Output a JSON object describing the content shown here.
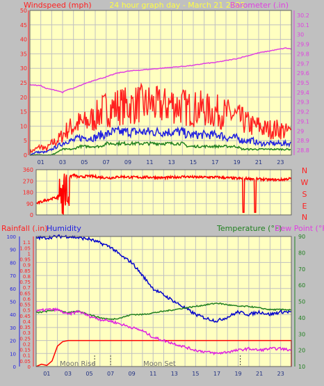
{
  "header": {
    "title": "24 hour graph day - March 21 2025",
    "left_label": "Windspeed (mph)",
    "right_label": "Barometer (.in)"
  },
  "mid_panel": {
    "direction_letters": [
      "N",
      "W",
      "S",
      "E",
      "N"
    ]
  },
  "bottom_header": {
    "rainfall_label": "Rainfall (.in)",
    "humidity_label": "Humidity",
    "temperature_label": "Temperature (°F)",
    "dewpoint_label": "Dew Point (°F)"
  },
  "moon": {
    "rise_label": "Moon Rise",
    "set_label": "Moon Set"
  },
  "colors": {
    "background": "#c0c0c0",
    "plot_bg": "#ffffc0",
    "gust": "#ff2020",
    "wind_avg": "#2020e0",
    "wind_min": "#208020",
    "barometer": "#e040e0",
    "direction": "#ff0000",
    "rain": "#ff0000",
    "humidity": "#0000cc",
    "temperature": "#208020",
    "dewpoint": "#e020e0",
    "grid": "#c0c0c0"
  },
  "chart_data": [
    {
      "type": "line",
      "title": "24 hour graph day - March 21 2025",
      "ylabel": "Windspeed (mph)",
      "ylim": [
        0,
        50
      ],
      "yticks": [
        0,
        5,
        10,
        15,
        20,
        25,
        30,
        35,
        40,
        45,
        50
      ],
      "y2label": "Barometer (.in)",
      "y2lim": [
        28.75,
        30.25
      ],
      "y2ticks": [
        "28.8",
        "28.9",
        "29",
        "29.1",
        "29.2",
        "29.3",
        "29.4",
        "29.5",
        "29.6",
        "29.7",
        "29.8",
        "29.9",
        "30",
        "30.1",
        "30.2"
      ],
      "x_ticks": [
        "01",
        "03",
        "05",
        "07",
        "09",
        "11",
        "13",
        "15",
        "17",
        "19",
        "21",
        "23"
      ],
      "xlim": [
        0,
        24
      ],
      "grid": true,
      "series": [
        {
          "key": "gust",
          "axis": "left",
          "x": [
            0,
            0.5,
            1,
            1.5,
            2,
            2.5,
            3,
            3.5,
            4,
            4.5,
            5,
            5.5,
            6,
            6.5,
            7,
            7.5,
            8,
            8.5,
            9,
            9.5,
            10,
            10.5,
            11,
            11.5,
            12,
            12.5,
            13,
            13.5,
            14,
            14.5,
            15,
            15.5,
            16,
            16.5,
            17,
            17.5,
            18,
            18.5,
            19,
            19.5,
            20,
            20.5,
            21,
            21.5,
            22,
            22.5,
            23,
            23.5,
            24
          ],
          "values": [
            1,
            2,
            3,
            2,
            4,
            5,
            7,
            9,
            10,
            11,
            11,
            12,
            13,
            15,
            16,
            16,
            17,
            17,
            17,
            17,
            18,
            17,
            18,
            17,
            17,
            17,
            18,
            17,
            17,
            16,
            16,
            16,
            16,
            15,
            15,
            15,
            14,
            14,
            13,
            12,
            11,
            10,
            10,
            9,
            9,
            9,
            9,
            8,
            8
          ]
        },
        {
          "key": "wind_avg",
          "axis": "left",
          "x": [
            0,
            0.5,
            1,
            1.5,
            2,
            2.5,
            3,
            3.5,
            4,
            4.5,
            5,
            5.5,
            6,
            6.5,
            7,
            7.5,
            8,
            8.5,
            9,
            9.5,
            10,
            10.5,
            11,
            11.5,
            12,
            12.5,
            13,
            13.5,
            14,
            14.5,
            15,
            15.5,
            16,
            16.5,
            17,
            17.5,
            18,
            18.5,
            19,
            19.5,
            20,
            20.5,
            21,
            21.5,
            22,
            22.5,
            23,
            23.5,
            24
          ],
          "values": [
            0,
            1,
            1,
            1,
            2,
            3,
            4,
            5,
            5,
            6,
            6,
            6,
            6,
            7,
            7,
            8,
            8,
            8,
            8,
            8,
            8,
            8,
            8,
            8,
            8,
            8,
            8,
            8,
            8,
            7,
            7,
            7,
            7,
            7,
            7,
            7,
            6,
            6,
            6,
            5,
            5,
            5,
            4,
            4,
            4,
            4,
            4,
            4,
            4
          ]
        },
        {
          "key": "wind_min",
          "axis": "left",
          "x": [
            0,
            0.5,
            1,
            1.5,
            2,
            2.5,
            3,
            3.5,
            4,
            4.5,
            5,
            5.5,
            6,
            6.5,
            7,
            7.5,
            8,
            8.5,
            9,
            9.5,
            10,
            10.5,
            11,
            11.5,
            12,
            12.5,
            13,
            13.5,
            14,
            14.5,
            15,
            15.5,
            16,
            16.5,
            17,
            17.5,
            18,
            18.5,
            19,
            19.5,
            20,
            20.5,
            21,
            21.5,
            22,
            22.5,
            23,
            23.5,
            24
          ],
          "values": [
            0,
            0,
            0,
            0,
            0,
            1,
            2,
            2,
            2,
            3,
            3,
            3,
            3,
            3,
            4,
            4,
            4,
            4,
            4,
            4,
            4,
            4,
            4,
            4,
            4,
            4,
            4,
            4,
            4,
            3,
            3,
            3,
            3,
            3,
            3,
            3,
            3,
            3,
            3,
            2,
            2,
            2,
            2,
            2,
            2,
            2,
            2,
            2,
            2
          ]
        },
        {
          "key": "barometer",
          "axis": "right",
          "x": [
            0,
            1,
            1.5,
            2,
            2.5,
            3,
            3.5,
            4,
            5,
            6,
            7,
            8,
            9,
            10,
            11,
            12,
            13,
            14,
            15,
            16,
            17,
            18,
            19,
            20,
            21,
            22,
            23,
            23.5,
            24
          ],
          "values": [
            29.48,
            29.47,
            29.44,
            29.43,
            29.42,
            29.4,
            29.43,
            29.44,
            29.49,
            29.53,
            29.56,
            29.6,
            29.62,
            29.63,
            29.64,
            29.65,
            29.66,
            29.67,
            29.68,
            29.7,
            29.71,
            29.73,
            29.75,
            29.78,
            29.81,
            29.83,
            29.85,
            29.86,
            29.85
          ]
        }
      ]
    },
    {
      "type": "scatter",
      "ylabel": "Wind Direction",
      "ylim": [
        0,
        360
      ],
      "yticks": [
        0,
        90,
        180,
        270,
        360
      ],
      "xlim": [
        0,
        24
      ],
      "series": [
        {
          "key": "direction",
          "x": [
            0,
            1,
            2,
            2.2,
            2.5,
            3,
            3.5,
            4,
            5,
            6,
            7,
            8,
            9,
            10,
            11,
            12,
            13,
            14,
            15,
            16,
            17,
            18,
            19,
            19.5,
            20,
            21,
            22,
            23,
            24
          ],
          "values": [
            90,
            120,
            140,
            20,
            330,
            290,
            320,
            300,
            310,
            300,
            295,
            305,
            300,
            300,
            300,
            295,
            300,
            305,
            300,
            300,
            300,
            295,
            290,
            290,
            290,
            285,
            280,
            280,
            290
          ]
        }
      ]
    },
    {
      "type": "line",
      "ylabel": "Rainfall (.in)",
      "ylim": [
        0,
        1.15
      ],
      "yticks": [
        "0",
        "0.05",
        "0.1",
        "0.15",
        "0.2",
        "0.25",
        "0.3",
        "0.35",
        "0.4",
        "0.45",
        "0.5",
        "0.55",
        "0.6",
        "0.65",
        "0.7",
        "0.75",
        "0.8",
        "0.85",
        "0.9",
        "0.95",
        "1",
        "1.05",
        "1.1"
      ],
      "y_left2_label": "Humidity",
      "y_left2_lim": [
        0,
        100
      ],
      "y_left2_ticks": [
        0,
        10,
        20,
        30,
        40,
        50,
        60,
        70,
        80,
        90,
        100
      ],
      "y2label": "Temperature (°F) / Dew Point (°F)",
      "y2lim": [
        10,
        90
      ],
      "y2ticks": [
        10,
        20,
        30,
        40,
        50,
        60,
        70,
        80,
        90
      ],
      "x_ticks": [
        "01",
        "03",
        "05",
        "07",
        "09",
        "11",
        "13",
        "15",
        "17",
        "19",
        "21",
        "23"
      ],
      "xlim": [
        0,
        24
      ],
      "series": [
        {
          "key": "rain",
          "axis": "rain",
          "x": [
            0,
            0.5,
            1,
            1.5,
            2,
            2.5,
            3,
            4,
            24
          ],
          "values": [
            0,
            0.02,
            0.01,
            0.05,
            0.18,
            0.22,
            0.23,
            0.23,
            0.23
          ]
        },
        {
          "key": "humidity",
          "axis": "humidity",
          "x": [
            0,
            1,
            2,
            3,
            4,
            5,
            6,
            7,
            8,
            9,
            10,
            11,
            12,
            13,
            14,
            15,
            16,
            17,
            18,
            19,
            20,
            21,
            22,
            23,
            24
          ],
          "values": [
            99,
            99,
            100,
            100,
            99,
            98,
            95,
            92,
            85,
            80,
            70,
            60,
            55,
            50,
            45,
            40,
            37,
            35,
            38,
            42,
            40,
            42,
            40,
            42,
            42
          ]
        },
        {
          "key": "temperature",
          "axis": "temp",
          "x": [
            0,
            1,
            2,
            3,
            4,
            5,
            6,
            7,
            8,
            9,
            10,
            11,
            12,
            13,
            14,
            15,
            16,
            17,
            18,
            19,
            20,
            21,
            22,
            23,
            24
          ],
          "values": [
            43,
            44,
            45,
            43,
            44,
            42,
            40,
            39,
            40,
            42,
            42,
            43,
            44,
            45,
            46,
            47,
            48,
            49,
            48,
            47,
            47,
            46,
            45,
            45,
            45
          ]
        },
        {
          "key": "dewpoint",
          "axis": "temp",
          "x": [
            0,
            1,
            2,
            3,
            4,
            5,
            6,
            7,
            8,
            9,
            10,
            11,
            12,
            13,
            14,
            15,
            16,
            17,
            18,
            19,
            20,
            21,
            22,
            23,
            24
          ],
          "values": [
            44,
            45,
            45,
            42,
            44,
            41,
            39,
            38,
            36,
            34,
            32,
            28,
            26,
            24,
            22,
            20,
            19,
            18,
            19,
            20,
            21,
            20,
            21,
            21,
            20
          ]
        }
      ]
    }
  ]
}
